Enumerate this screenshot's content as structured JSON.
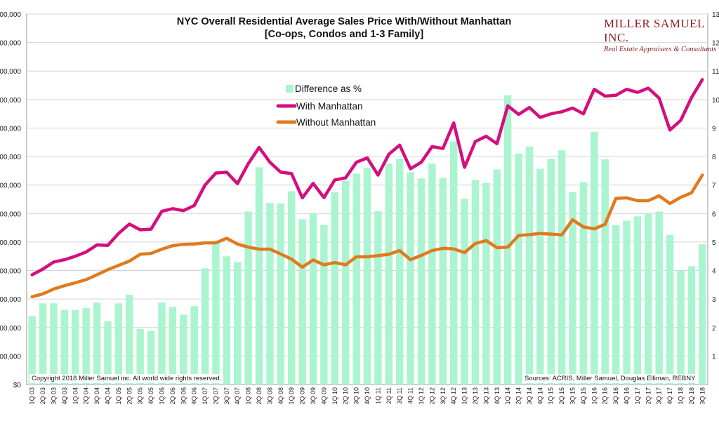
{
  "header": {
    "title_line1": "NYC Overall Residential Average Sales Price With/Without Manhattan",
    "title_line2": "[Co-ops, Condos and 1-3 Family]"
  },
  "brand": {
    "name": "MILLER SAMUEL INC.",
    "tagline": "Real Estate Appraisers & Consultants"
  },
  "footer": {
    "copyright": "Copyright 2018 Miller Samuel inc.  All world wide rights reserved.",
    "sources": "Sources: ACRIS, Miller Samuel, Douglas Elliman, REBNY"
  },
  "colors": {
    "bars": "#aaf5cf",
    "with_manhattan": "#d40f7d",
    "without_manhattan": "#e07a1f",
    "grid": "#d4d4d4"
  },
  "chart_data": {
    "type": "bar+line",
    "legend": {
      "placement": "top-center",
      "entries": [
        "Difference as %",
        "With Manhattan",
        "Without Manhattan"
      ]
    },
    "y_left": {
      "min": 0,
      "max": 1300000,
      "step": 100000,
      "visible_tick_labels": [
        "$0",
        "00,000",
        "00,000",
        "00,000",
        "00,000",
        "00,000",
        "00,000",
        "00,000",
        "00,000",
        "00,000",
        "00,000",
        "00,000",
        "00,000",
        "00,000"
      ]
    },
    "y_right": {
      "min": 0,
      "max": 130,
      "step": 10,
      "visible_tick_labels": [
        "",
        "1",
        "2",
        "3",
        "4",
        "5",
        "6",
        "7",
        "8",
        "9",
        "10",
        "11",
        "12",
        "13"
      ]
    },
    "grid": true,
    "categories": [
      "1Q 03",
      "2Q 03",
      "3Q 03",
      "4Q 03",
      "1Q 04",
      "2Q 04",
      "3Q 04",
      "4Q 04",
      "1Q 05",
      "2Q 05",
      "3Q 05",
      "4Q 05",
      "1Q 06",
      "2Q 06",
      "3Q 06",
      "4Q 06",
      "1Q 07",
      "2Q 07",
      "3Q 07",
      "4Q 07",
      "1Q 08",
      "2Q 08",
      "3Q 08",
      "4Q 08",
      "1Q 09",
      "2Q 09",
      "3Q 09",
      "4Q 09",
      "1Q 10",
      "2Q 10",
      "3Q 10",
      "4Q 10",
      "1Q 11",
      "2Q 11",
      "3Q 11",
      "4Q 11",
      "1Q 12",
      "2Q 12",
      "3Q 12",
      "4Q 12",
      "1Q 13",
      "2Q 13",
      "3Q 13",
      "4Q 13",
      "1Q 14",
      "2Q 14",
      "3Q 14",
      "4Q 14",
      "1Q 15",
      "2Q 15",
      "3Q 15",
      "4Q 15",
      "1Q 16",
      "2Q 16",
      "3Q 16",
      "4Q 16",
      "1Q 17",
      "2Q 17",
      "3Q 17",
      "4Q 17",
      "1Q 18",
      "2Q 18",
      "3Q 18"
    ],
    "series": [
      {
        "name": "Difference as %",
        "kind": "bar",
        "axis": "right",
        "values": [
          24,
          28.5,
          28.5,
          26.2,
          26.2,
          26.8,
          28.7,
          22.2,
          28.5,
          31.5,
          19.5,
          18.8,
          28.7,
          27.2,
          24.5,
          27.5,
          40.8,
          50.5,
          45,
          43,
          60.7,
          76.2,
          63.7,
          63.5,
          67.8,
          58,
          60.2,
          56,
          67.5,
          71.5,
          74,
          76,
          60.8,
          77.5,
          79.2,
          74.5,
          72.3,
          77.5,
          72.5,
          85.3,
          65.2,
          71.8,
          70.7,
          75.5,
          101.5,
          81,
          83.5,
          75.7,
          79.2,
          82.2,
          67.5,
          71,
          88.7,
          79,
          56,
          57.5,
          59,
          60,
          60.7,
          52.5,
          40.2,
          41.5,
          49.2
        ]
      },
      {
        "name": "With Manhattan",
        "kind": "line",
        "axis": "left",
        "values": [
          385000,
          405000,
          430000,
          438000,
          450000,
          465000,
          490000,
          488000,
          530000,
          563000,
          543000,
          545000,
          608000,
          617000,
          610000,
          628000,
          700000,
          742000,
          745000,
          705000,
          775000,
          832000,
          780000,
          745000,
          740000,
          655000,
          706000,
          656000,
          718000,
          725000,
          780000,
          795000,
          735000,
          808000,
          840000,
          757000,
          780000,
          835000,
          828000,
          918000,
          762000,
          853000,
          871000,
          845000,
          978000,
          948000,
          972000,
          937000,
          950000,
          957000,
          970000,
          950000,
          1036000,
          1012000,
          1015000,
          1036000,
          1025000,
          1040000,
          1005000,
          893000,
          927000,
          1007000,
          1070000
        ]
      },
      {
        "name": "Without Manhattan",
        "kind": "line",
        "axis": "left",
        "values": [
          308000,
          318000,
          335000,
          347000,
          357000,
          368000,
          385000,
          403000,
          418000,
          433000,
          457000,
          460000,
          475000,
          487000,
          492000,
          493000,
          497000,
          497000,
          513000,
          493000,
          482000,
          475000,
          475000,
          458000,
          440000,
          412000,
          437000,
          420000,
          428000,
          420000,
          448000,
          448000,
          452000,
          457000,
          470000,
          438000,
          453000,
          470000,
          478000,
          476000,
          463000,
          495000,
          505000,
          480000,
          482000,
          523000,
          526000,
          530000,
          528000,
          525000,
          578000,
          553000,
          546000,
          562000,
          653000,
          655000,
          645000,
          645000,
          662000,
          635000,
          657000,
          673000,
          735000
        ]
      }
    ]
  }
}
